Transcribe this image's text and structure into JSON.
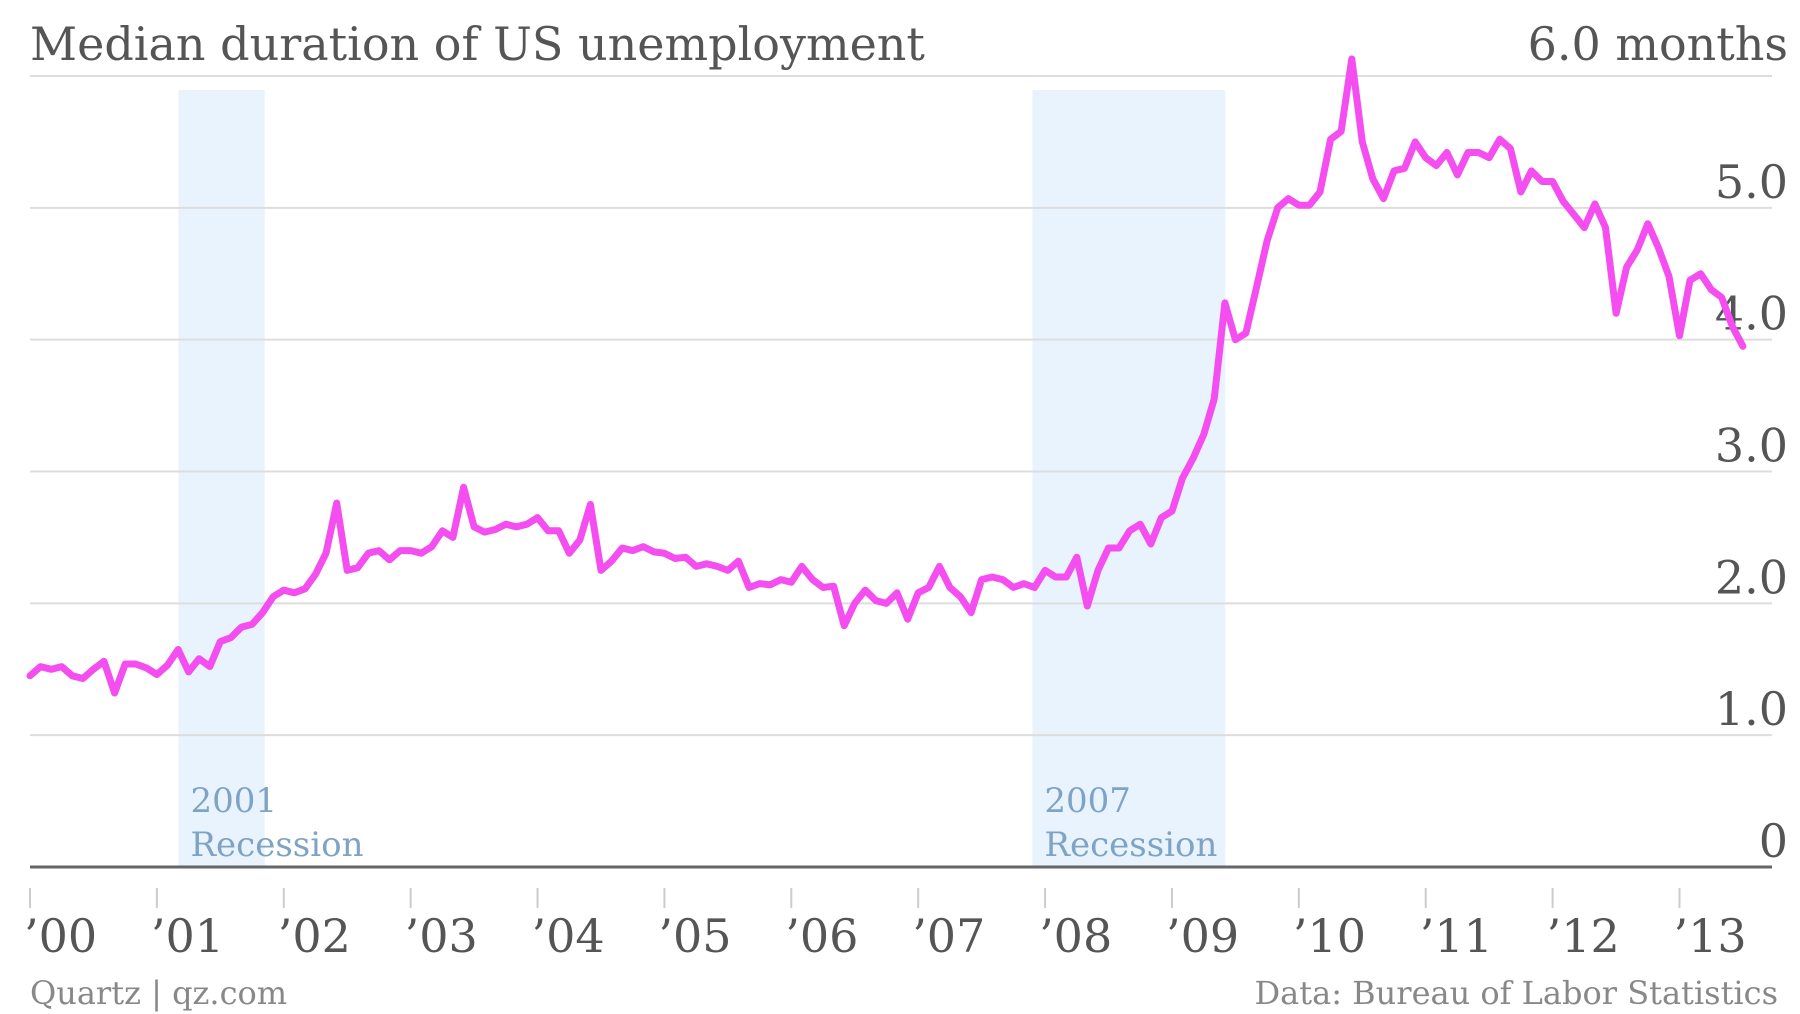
{
  "title": "Median duration of US unemployment",
  "unit_label": "6.0 months",
  "footer_left": "Quartz | qz.com",
  "footer_right": "Data: Bureau of Labor Statistics",
  "colors": {
    "line": "#f44ef0",
    "recession_band": "#e8f3fd",
    "recession_label": "#7fa3c4",
    "text": "#555555",
    "grid": "#dddddd"
  },
  "chart_data": {
    "type": "line",
    "title": "Median duration of US unemployment",
    "ylabel": "months",
    "ylim": [
      0,
      6
    ],
    "xlim": [
      2000.0,
      2013.8
    ],
    "grid": true,
    "y_ticks": [
      {
        "value": 0,
        "label": "0"
      },
      {
        "value": 1,
        "label": "1.0"
      },
      {
        "value": 2,
        "label": "2.0"
      },
      {
        "value": 3,
        "label": "3.0"
      },
      {
        "value": 4,
        "label": "4.0"
      },
      {
        "value": 5,
        "label": "5.0"
      }
    ],
    "x_ticks": [
      {
        "value": 2000,
        "label": "’00"
      },
      {
        "value": 2001,
        "label": "’01"
      },
      {
        "value": 2002,
        "label": "’02"
      },
      {
        "value": 2003,
        "label": "’03"
      },
      {
        "value": 2004,
        "label": "’04"
      },
      {
        "value": 2005,
        "label": "’05"
      },
      {
        "value": 2006,
        "label": "’06"
      },
      {
        "value": 2007,
        "label": "’07"
      },
      {
        "value": 2008,
        "label": "’08"
      },
      {
        "value": 2009,
        "label": "’09"
      },
      {
        "value": 2010,
        "label": "’10"
      },
      {
        "value": 2011,
        "label": "’11"
      },
      {
        "value": 2012,
        "label": "’12"
      },
      {
        "value": 2013,
        "label": "’13"
      }
    ],
    "recessions": [
      {
        "start": 2001.17,
        "end": 2001.85,
        "label_line1": "2001",
        "label_line2": "Recession"
      },
      {
        "start": 2007.9,
        "end": 2009.42,
        "label_line1": "2007",
        "label_line2": "Recession"
      }
    ],
    "series": [
      {
        "x": [
          2000.0,
          2000.083,
          2000.167,
          2000.25,
          2000.333,
          2000.417,
          2000.5,
          2000.583,
          2000.667,
          2000.75,
          2000.833,
          2000.917,
          2001.0,
          2001.083,
          2001.167,
          2001.25,
          2001.333,
          2001.417,
          2001.5,
          2001.583,
          2001.667,
          2001.75,
          2001.833,
          2001.917,
          2002.0,
          2002.083,
          2002.167,
          2002.25,
          2002.333,
          2002.417,
          2002.5,
          2002.583,
          2002.667,
          2002.75,
          2002.833,
          2002.917,
          2003.0,
          2003.083,
          2003.167,
          2003.25,
          2003.333,
          2003.417,
          2003.5,
          2003.583,
          2003.667,
          2003.75,
          2003.833,
          2003.917,
          2004.0,
          2004.083,
          2004.167,
          2004.25,
          2004.333,
          2004.417,
          2004.5,
          2004.583,
          2004.667,
          2004.75,
          2004.833,
          2004.917,
          2005.0,
          2005.083,
          2005.167,
          2005.25,
          2005.333,
          2005.417,
          2005.5,
          2005.583,
          2005.667,
          2005.75,
          2005.833,
          2005.917,
          2006.0,
          2006.083,
          2006.167,
          2006.25,
          2006.333,
          2006.417,
          2006.5,
          2006.583,
          2006.667,
          2006.75,
          2006.833,
          2006.917,
          2007.0,
          2007.083,
          2007.167,
          2007.25,
          2007.333,
          2007.417,
          2007.5,
          2007.583,
          2007.667,
          2007.75,
          2007.833,
          2007.917,
          2008.0,
          2008.083,
          2008.167,
          2008.25,
          2008.333,
          2008.417,
          2008.5,
          2008.583,
          2008.667,
          2008.75,
          2008.833,
          2008.917,
          2009.0,
          2009.083,
          2009.167,
          2009.25,
          2009.333,
          2009.417,
          2009.5,
          2009.583,
          2009.667,
          2009.75,
          2009.833,
          2009.917,
          2010.0,
          2010.083,
          2010.167,
          2010.25,
          2010.333,
          2010.417,
          2010.5,
          2010.583,
          2010.667,
          2010.75,
          2010.833,
          2010.917,
          2011.0,
          2011.083,
          2011.167,
          2011.25,
          2011.333,
          2011.417,
          2011.5,
          2011.583,
          2011.667,
          2011.75,
          2011.833,
          2011.917,
          2012.0,
          2012.083,
          2012.167,
          2012.25,
          2012.333,
          2012.417,
          2012.5,
          2012.583,
          2012.667,
          2012.75,
          2012.833,
          2012.917,
          2013.0,
          2013.083,
          2013.167,
          2013.25,
          2013.333,
          2013.417,
          2013.5
        ],
        "values": [
          1.45,
          1.52,
          1.5,
          1.52,
          1.45,
          1.43,
          1.5,
          1.56,
          1.32,
          1.54,
          1.54,
          1.51,
          1.46,
          1.53,
          1.65,
          1.48,
          1.58,
          1.52,
          1.71,
          1.74,
          1.82,
          1.84,
          1.93,
          2.05,
          2.1,
          2.08,
          2.11,
          2.22,
          2.38,
          2.76,
          2.25,
          2.27,
          2.38,
          2.4,
          2.33,
          2.4,
          2.4,
          2.38,
          2.43,
          2.55,
          2.5,
          2.88,
          2.58,
          2.54,
          2.56,
          2.6,
          2.58,
          2.6,
          2.65,
          2.55,
          2.55,
          2.38,
          2.48,
          2.75,
          2.25,
          2.32,
          2.42,
          2.4,
          2.43,
          2.39,
          2.38,
          2.34,
          2.35,
          2.28,
          2.3,
          2.28,
          2.25,
          2.32,
          2.12,
          2.15,
          2.14,
          2.18,
          2.16,
          2.28,
          2.18,
          2.12,
          2.13,
          1.83,
          2.0,
          2.1,
          2.02,
          2.0,
          2.08,
          1.88,
          2.08,
          2.12,
          2.28,
          2.12,
          2.05,
          1.93,
          2.18,
          2.2,
          2.18,
          2.12,
          2.15,
          2.12,
          2.25,
          2.2,
          2.2,
          2.35,
          1.98,
          2.25,
          2.42,
          2.42,
          2.55,
          2.6,
          2.45,
          2.65,
          2.7,
          2.95,
          3.1,
          3.28,
          3.55,
          4.28,
          4.0,
          4.05,
          4.4,
          4.75,
          5.0,
          5.07,
          5.02,
          5.02,
          5.12,
          5.52,
          5.58,
          6.13,
          5.5,
          5.22,
          5.07,
          5.28,
          5.3,
          5.5,
          5.38,
          5.32,
          5.42,
          5.25,
          5.42,
          5.42,
          5.38,
          5.52,
          5.45,
          5.12,
          5.28,
          5.2,
          5.2,
          5.05,
          4.95,
          4.85,
          5.03,
          4.85,
          4.2,
          4.55,
          4.68,
          4.88,
          4.7,
          4.48,
          4.03,
          4.45,
          4.5,
          4.38,
          4.32,
          4.1,
          3.95
        ]
      }
    ]
  }
}
